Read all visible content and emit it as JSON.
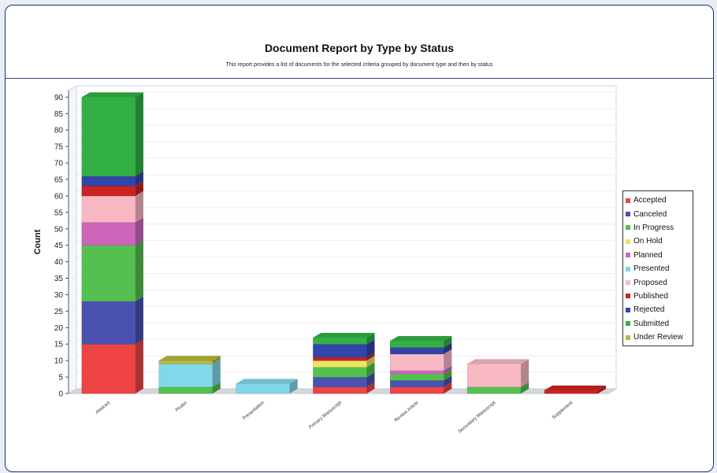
{
  "chart_data": {
    "type": "bar",
    "stacked": true,
    "title": "Document Report by Type by Status",
    "subtitle": "This report provides a list of documents for the selected criteria grouped by document type and then by status",
    "xlabel": "",
    "ylabel": "Count",
    "ylim": [
      0,
      92
    ],
    "yticks": [
      0,
      5,
      10,
      15,
      20,
      25,
      30,
      35,
      40,
      45,
      50,
      55,
      60,
      65,
      70,
      75,
      80,
      85,
      90
    ],
    "grid": true,
    "legend": "right",
    "categories": [
      "Abstract",
      "Poster",
      "Presentation",
      "Primary Manuscript",
      "Review Article",
      "Secondary Manuscript",
      "Supplement"
    ],
    "series": [
      {
        "name": "Accepted",
        "color": "#ee4444",
        "values": [
          15,
          0,
          0,
          2,
          2,
          0,
          0
        ]
      },
      {
        "name": "Canceled",
        "color": "#4a52b0",
        "values": [
          13,
          0,
          0,
          3,
          2,
          0,
          0
        ]
      },
      {
        "name": "In Progress",
        "color": "#55c050",
        "values": [
          17,
          2,
          0,
          3,
          2,
          2,
          0
        ]
      },
      {
        "name": "On Hold",
        "color": "#e8e860",
        "values": [
          0,
          0,
          0,
          2,
          0,
          0,
          0
        ]
      },
      {
        "name": "Planned",
        "color": "#cc66bb",
        "values": [
          7,
          0,
          0,
          0,
          1,
          0,
          0
        ]
      },
      {
        "name": "Presented",
        "color": "#80d8e8",
        "values": [
          0,
          7,
          3,
          0,
          0,
          0,
          0
        ]
      },
      {
        "name": "Proposed",
        "color": "#f8b8c4",
        "values": [
          8,
          0,
          0,
          0,
          5,
          7,
          0
        ]
      },
      {
        "name": "Published",
        "color": "#cc2222",
        "values": [
          3,
          0,
          0,
          1,
          0,
          0,
          1
        ]
      },
      {
        "name": "Rejected",
        "color": "#3344aa",
        "values": [
          3,
          0,
          0,
          4,
          2,
          0,
          0
        ]
      },
      {
        "name": "Submitted",
        "color": "#33b044",
        "values": [
          24,
          0,
          0,
          2,
          2,
          0,
          0
        ]
      },
      {
        "name": "Under Review",
        "color": "#b8b840",
        "values": [
          0,
          1,
          0,
          0,
          0,
          0,
          0
        ]
      }
    ]
  }
}
